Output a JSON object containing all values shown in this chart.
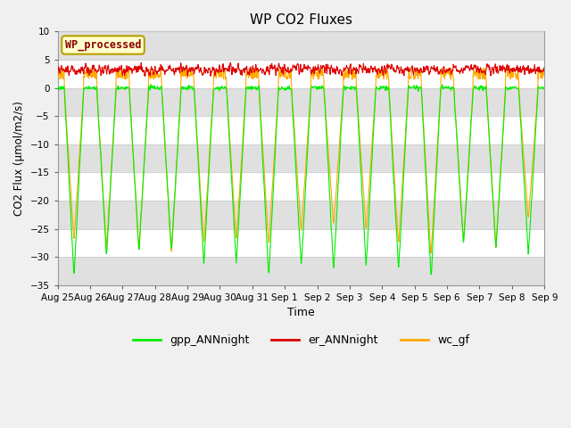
{
  "title": "WP CO2 Fluxes",
  "xlabel": "Time",
  "ylabel": "CO2 Flux (μmol/m2/s)",
  "ylim": [
    -35,
    10
  ],
  "yticks": [
    -35,
    -30,
    -25,
    -20,
    -15,
    -10,
    -5,
    0,
    5,
    10
  ],
  "fig_bg_color": "#f0f0f0",
  "plot_bg_color": "#ffffff",
  "band_color": "#e0e0e0",
  "legend_label": "WP_processed",
  "legend_text_color": "#8b0000",
  "legend_bg": "#ffffcc",
  "legend_edge": "#b8a000",
  "series_colors": {
    "gpp": "#00ee00",
    "er": "#dd0000",
    "wc": "#ffaa00"
  },
  "series_labels": [
    "gpp_ANNnight",
    "er_ANNnight",
    "wc_gf"
  ],
  "n_days": 15,
  "points_per_day": 96,
  "xtick_labels": [
    "Aug 25",
    "Aug 26",
    "Aug 27",
    "Aug 28",
    "Aug 29",
    "Aug 30",
    "Aug 31",
    "Sep 1",
    "Sep 2",
    "Sep 3",
    "Sep 4",
    "Sep 5",
    "Sep 6",
    "Sep 7",
    "Sep 8",
    "Sep 9"
  ],
  "line_width": 0.8
}
